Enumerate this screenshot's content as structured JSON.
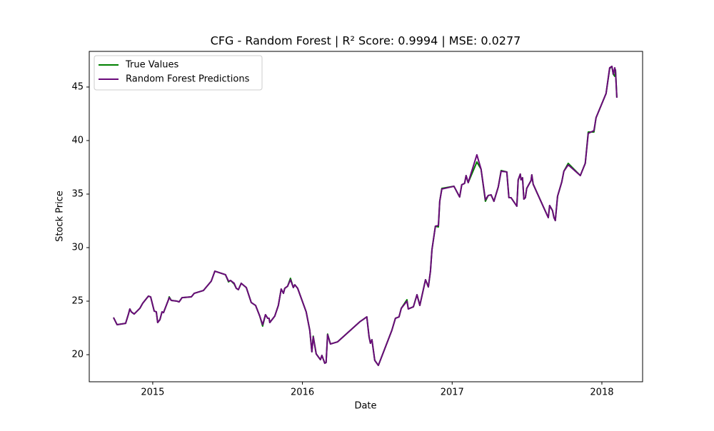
{
  "chart_data": {
    "type": "line",
    "title": "CFG - Random Forest | R² Score: 0.9994 | MSE: 0.0277",
    "x_label": "Date",
    "y_label": "Stock Price",
    "x": [
      2014.738,
      2014.762,
      2014.819,
      2014.838,
      2014.847,
      2014.857,
      2014.876,
      2014.914,
      2014.933,
      2014.971,
      2014.986,
      2015.01,
      2015.024,
      2015.033,
      2015.048,
      2015.062,
      2015.072,
      2015.105,
      2015.11,
      2015.124,
      2015.162,
      2015.176,
      2015.196,
      2015.258,
      2015.277,
      2015.339,
      2015.391,
      2015.415,
      2015.486,
      2015.506,
      2015.52,
      2015.544,
      2015.558,
      2015.572,
      2015.591,
      2015.625,
      2015.658,
      2015.687,
      2015.715,
      2015.734,
      2015.753,
      2015.768,
      2015.777,
      2015.782,
      2015.815,
      2015.839,
      2015.858,
      2015.873,
      2015.882,
      2015.901,
      2015.92,
      2015.939,
      2015.949,
      2015.968,
      2016.025,
      2016.049,
      2016.063,
      2016.072,
      2016.092,
      2016.12,
      2016.13,
      2016.149,
      2016.158,
      2016.168,
      2016.187,
      2016.235,
      2016.383,
      2016.43,
      2016.445,
      2016.454,
      2016.464,
      2016.483,
      2016.507,
      2016.597,
      2016.621,
      2016.645,
      2016.66,
      2016.698,
      2016.707,
      2016.741,
      2016.765,
      2016.784,
      2016.822,
      2016.841,
      2016.855,
      2016.865,
      2016.888,
      2016.908,
      2016.917,
      2016.931,
      2017.012,
      2017.05,
      2017.064,
      2017.083,
      2017.093,
      2017.107,
      2017.165,
      2017.193,
      2017.222,
      2017.241,
      2017.26,
      2017.279,
      2017.308,
      2017.327,
      2017.365,
      2017.379,
      2017.393,
      2017.432,
      2017.441,
      2017.455,
      2017.46,
      2017.47,
      2017.479,
      2017.489,
      2017.498,
      2017.527,
      2017.532,
      2017.541,
      2017.642,
      2017.651,
      2017.67,
      2017.68,
      2017.689,
      2017.704,
      2017.732,
      2017.746,
      2017.775,
      2017.856,
      2017.889,
      2017.909,
      2017.947,
      2017.961,
      2018.028,
      2018.052,
      2018.067,
      2018.076,
      2018.086,
      2018.091,
      2018.1
    ],
    "series": [
      {
        "name": "True Values",
        "color": "#008000",
        "values": [
          23.47,
          22.8,
          22.93,
          23.8,
          24.27,
          24.0,
          23.8,
          24.33,
          24.8,
          25.47,
          25.4,
          24.07,
          24.0,
          23.0,
          23.27,
          24.0,
          23.93,
          25.13,
          25.4,
          25.07,
          25.0,
          24.93,
          25.33,
          25.4,
          25.73,
          26.0,
          26.87,
          27.8,
          27.47,
          26.8,
          26.93,
          26.6,
          26.2,
          26.07,
          26.67,
          26.27,
          24.87,
          24.6,
          23.6,
          22.67,
          23.73,
          23.4,
          23.4,
          23.0,
          23.6,
          24.6,
          26.13,
          25.73,
          26.2,
          26.4,
          27.13,
          26.27,
          26.53,
          26.2,
          24.0,
          22.27,
          20.27,
          21.73,
          20.07,
          19.53,
          19.93,
          19.2,
          19.27,
          21.93,
          21.0,
          21.2,
          23.07,
          23.53,
          21.67,
          21.07,
          21.4,
          19.47,
          19.0,
          22.27,
          23.4,
          23.53,
          24.33,
          25.13,
          24.27,
          24.47,
          25.6,
          24.6,
          27.0,
          26.33,
          27.8,
          29.8,
          32.0,
          31.93,
          34.33,
          35.53,
          35.73,
          34.73,
          35.87,
          36.0,
          36.73,
          36.07,
          38.0,
          37.33,
          34.33,
          34.87,
          34.93,
          34.33,
          35.67,
          37.2,
          37.07,
          34.67,
          34.67,
          33.87,
          36.33,
          36.87,
          36.33,
          36.53,
          34.53,
          34.67,
          35.53,
          36.27,
          36.8,
          35.93,
          32.8,
          33.93,
          33.47,
          32.8,
          32.53,
          34.8,
          36.13,
          37.13,
          37.87,
          36.73,
          37.87,
          40.8,
          40.8,
          42.13,
          44.4,
          46.73,
          46.93,
          46.2,
          46.0,
          46.6,
          44.0
        ]
      },
      {
        "name": "Random Forest Predictions",
        "color": "#6a0a7a",
        "values": [
          23.47,
          22.8,
          22.93,
          23.8,
          24.27,
          24.0,
          23.8,
          24.33,
          24.8,
          25.47,
          25.4,
          24.07,
          24.0,
          23.0,
          23.27,
          24.0,
          23.93,
          25.13,
          25.33,
          25.07,
          25.0,
          24.93,
          25.33,
          25.4,
          25.73,
          26.0,
          26.87,
          27.8,
          27.47,
          26.87,
          26.93,
          26.67,
          26.2,
          26.07,
          26.67,
          26.27,
          24.87,
          24.6,
          23.6,
          22.8,
          23.73,
          23.4,
          23.4,
          23.0,
          23.6,
          24.6,
          26.13,
          25.73,
          26.2,
          26.4,
          27.0,
          26.27,
          26.53,
          26.2,
          24.0,
          22.27,
          20.27,
          21.67,
          20.07,
          19.53,
          19.93,
          19.2,
          19.27,
          21.87,
          21.0,
          21.2,
          23.07,
          23.53,
          21.67,
          21.07,
          21.4,
          19.47,
          19.0,
          22.27,
          23.4,
          23.53,
          24.33,
          25.0,
          24.27,
          24.47,
          25.6,
          24.6,
          27.0,
          26.33,
          27.8,
          29.8,
          32.0,
          32.07,
          34.33,
          35.47,
          35.73,
          34.73,
          35.87,
          36.0,
          36.73,
          36.07,
          38.67,
          37.33,
          34.47,
          34.87,
          34.93,
          34.33,
          35.67,
          37.13,
          37.07,
          34.67,
          34.67,
          33.87,
          36.33,
          36.87,
          36.33,
          36.53,
          34.53,
          34.67,
          35.53,
          36.27,
          36.8,
          35.93,
          32.8,
          33.93,
          33.47,
          32.8,
          32.53,
          34.8,
          36.13,
          37.13,
          37.73,
          36.73,
          37.87,
          40.67,
          40.93,
          42.13,
          44.4,
          46.8,
          46.93,
          46.2,
          46.8,
          46.47,
          44.0
        ]
      }
    ],
    "xlim": [
      2014.576,
      2018.272
    ],
    "ylim": [
      17.47,
      48.33
    ],
    "xticks": [
      2015,
      2016,
      2017,
      2018
    ],
    "yticks": [
      20,
      25,
      30,
      35,
      40,
      45
    ],
    "legend": "upper left"
  }
}
